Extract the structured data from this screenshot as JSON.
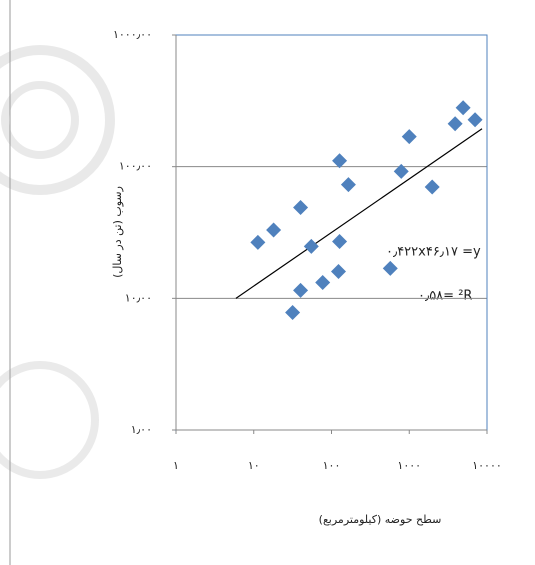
{
  "chart_data": {
    "type": "scatter",
    "x_label": "سطح حوضه (کیلومترمربع)",
    "y_label": "رسوب (تن در سال)",
    "x": [
      11.3,
      18,
      40,
      55,
      40,
      31.6,
      77,
      127,
      165,
      127,
      123,
      570,
      789,
      1000,
      1972,
      3890,
      4930,
      7020
    ],
    "values": [
      26.6,
      33,
      49,
      24.8,
      11.5,
      7.8,
      13.2,
      111,
      73,
      27,
      16,
      16.9,
      92,
      169,
      70,
      212,
      280,
      227
    ],
    "color": "#4f81bd",
    "trendline": {
      "x": [
        5.9,
        8630
      ],
      "values": [
        10,
        194
      ],
      "color": "#000000"
    },
    "annotations": [
      "۰٫۴۲۲x۴۶٫۱۷ =y",
      "۰٫۵۸= ²R"
    ],
    "xlog": true,
    "ylog": true,
    "xlim": [
      1,
      10000
    ],
    "ylim": [
      1,
      1000
    ],
    "xticks": [
      {
        "value": 1,
        "label": "۱"
      },
      {
        "value": 10,
        "label": "۱۰"
      },
      {
        "value": 100,
        "label": "۱۰۰"
      },
      {
        "value": 1000,
        "label": "۱۰۰۰"
      },
      {
        "value": 10000,
        "label": "۱۰۰۰۰"
      }
    ],
    "yticks": [
      {
        "value": 1,
        "label": "۱٫۰۰"
      },
      {
        "value": 10,
        "label": "۱۰٫۰۰"
      },
      {
        "value": 100,
        "label": "۱۰۰٫۰۰"
      },
      {
        "value": 1000,
        "label": "۱۰۰۰٫۰۰"
      }
    ],
    "grid": true,
    "border_color": "#4f81bd"
  }
}
